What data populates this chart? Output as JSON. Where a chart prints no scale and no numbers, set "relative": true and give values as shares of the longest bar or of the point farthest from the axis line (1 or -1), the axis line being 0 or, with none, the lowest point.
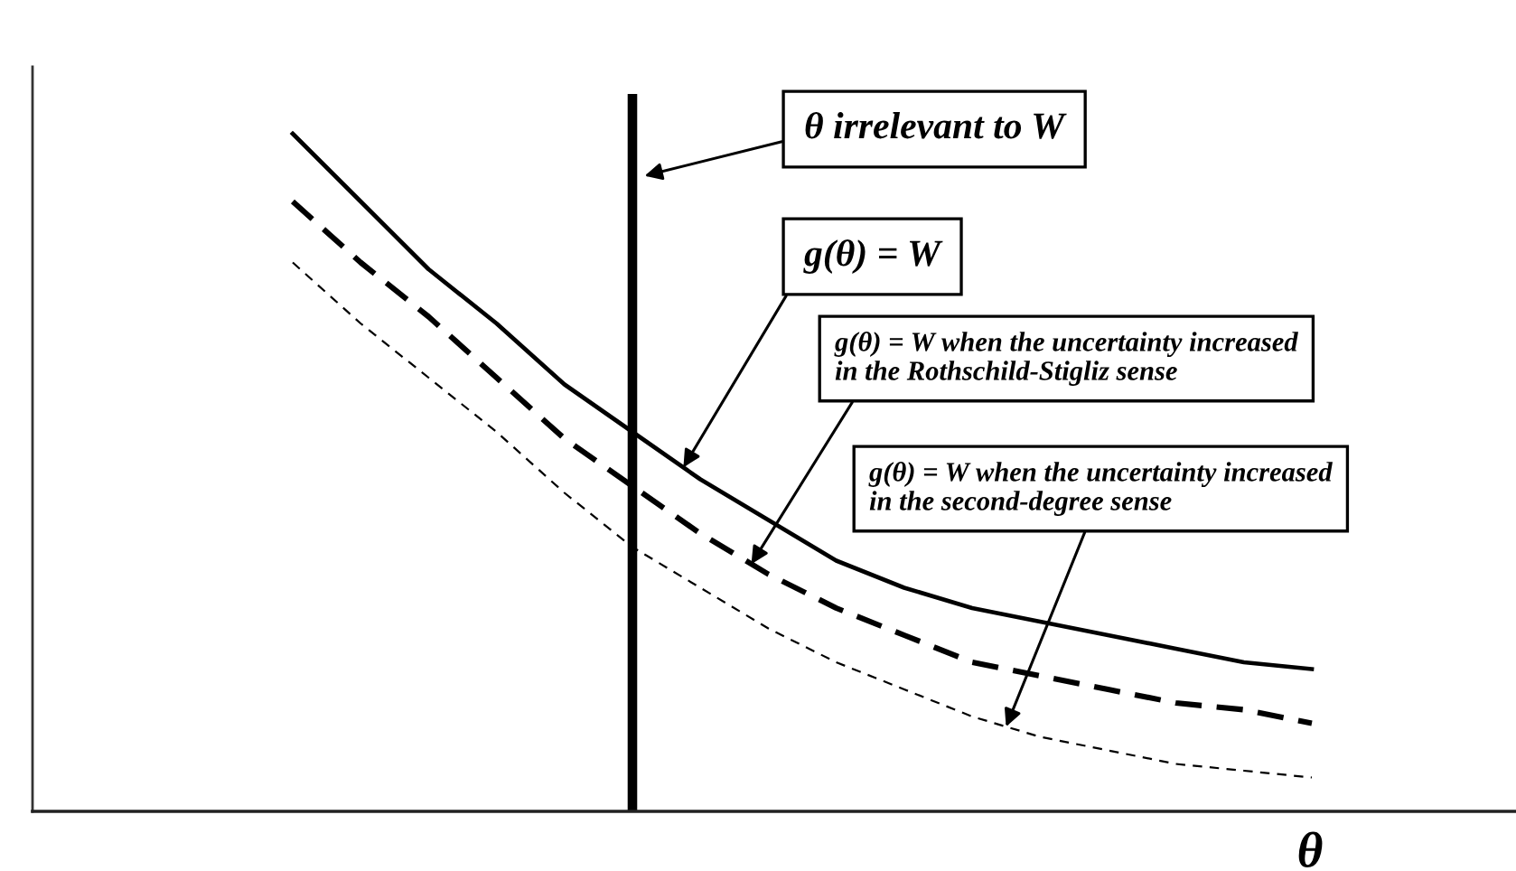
{
  "chart_data": {
    "type": "line",
    "relative": true,
    "xlabel": "θ",
    "categories": [
      null,
      null,
      null,
      null,
      null,
      null,
      null,
      null,
      null,
      null,
      null,
      null,
      null,
      null,
      null,
      null
    ],
    "series": [
      {
        "name": "g(θ) = W",
        "color": "#000000",
        "line_style": "solid",
        "values": [
          1,
          0.9,
          0.8,
          0.72,
          0.63,
          0.56,
          0.49,
          0.43,
          0.37,
          0.33,
          0.3,
          0.28,
          0.26,
          0.24,
          0.22,
          0.21
        ]
      },
      {
        "name": "g(θ) = W when the uncertainty increased\nin the Rothschild-Stigliz sense",
        "color": "#000000",
        "line_style": "dashed",
        "values": [
          0.9,
          0.81,
          0.73,
          0.64,
          0.55,
          0.48,
          0.41,
          0.35,
          0.3,
          0.26,
          0.22,
          0.2,
          0.18,
          0.16,
          0.15,
          0.13
        ]
      },
      {
        "name": "g(θ) = W when the uncertainty increased\nin the second-degree sense",
        "color": "#000000",
        "line_style": "dotted",
        "values": [
          0.81,
          0.72,
          0.64,
          0.56,
          0.47,
          0.39,
          0.33,
          0.27,
          0.22,
          0.18,
          0.14,
          0.11,
          0.09,
          0.07,
          0.06,
          0.05
        ]
      }
    ],
    "annotations": [
      "θ irrelevant to W"
    ]
  }
}
